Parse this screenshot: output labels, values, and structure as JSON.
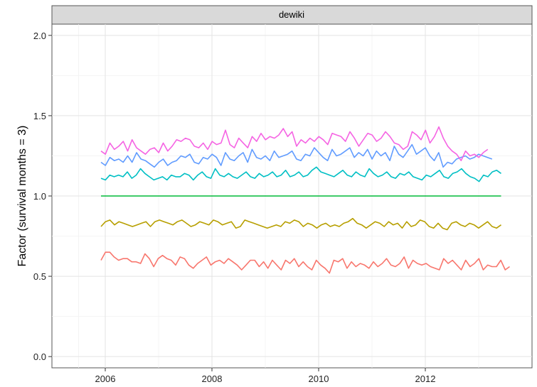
{
  "chart_data": {
    "type": "line",
    "panel": "dewiki",
    "title": "",
    "xlabel": "",
    "ylabel": "Factor (survival months = 3)",
    "xlim": [
      2005.0,
      2014.0
    ],
    "ylim": [
      -0.07,
      2.07
    ],
    "x_ticks": [
      2006,
      2008,
      2010,
      2012
    ],
    "y_ticks": [
      0.0,
      0.5,
      1.0,
      1.5,
      2.0
    ],
    "y_tick_labels": [
      "0.0",
      "0.5",
      "1.0",
      "1.5",
      "2.0"
    ],
    "grid": true,
    "legend": "none",
    "series": [
      {
        "color": "#F8766D",
        "x_start": 2005.92,
        "x_end": 2013.58,
        "values": [
          0.6,
          0.65,
          0.65,
          0.62,
          0.6,
          0.61,
          0.61,
          0.59,
          0.59,
          0.58,
          0.64,
          0.61,
          0.56,
          0.61,
          0.63,
          0.61,
          0.6,
          0.57,
          0.62,
          0.61,
          0.57,
          0.55,
          0.58,
          0.6,
          0.62,
          0.57,
          0.59,
          0.6,
          0.58,
          0.61,
          0.59,
          0.57,
          0.54,
          0.57,
          0.6,
          0.6,
          0.56,
          0.59,
          0.55,
          0.6,
          0.57,
          0.54,
          0.6,
          0.58,
          0.61,
          0.56,
          0.59,
          0.56,
          0.54,
          0.6,
          0.57,
          0.55,
          0.52,
          0.6,
          0.59,
          0.61,
          0.55,
          0.59,
          0.56,
          0.58,
          0.57,
          0.55,
          0.59,
          0.56,
          0.58,
          0.61,
          0.57,
          0.56,
          0.58,
          0.62,
          0.55,
          0.6,
          0.58,
          0.57,
          0.58,
          0.56,
          0.55,
          0.54,
          0.61,
          0.58,
          0.6,
          0.57,
          0.54,
          0.6,
          0.56,
          0.58,
          0.61,
          0.54,
          0.57,
          0.56,
          0.56,
          0.6,
          0.54,
          0.56
        ]
      },
      {
        "color": "#B79F00",
        "x_start": 2005.92,
        "x_end": 2013.42,
        "values": [
          0.81,
          0.84,
          0.85,
          0.82,
          0.84,
          0.83,
          0.82,
          0.81,
          0.82,
          0.83,
          0.84,
          0.81,
          0.84,
          0.85,
          0.84,
          0.83,
          0.82,
          0.84,
          0.85,
          0.83,
          0.81,
          0.82,
          0.84,
          0.83,
          0.82,
          0.85,
          0.84,
          0.82,
          0.83,
          0.84,
          0.8,
          0.81,
          0.85,
          0.84,
          0.83,
          0.82,
          0.81,
          0.8,
          0.81,
          0.82,
          0.81,
          0.84,
          0.83,
          0.85,
          0.84,
          0.81,
          0.83,
          0.82,
          0.8,
          0.82,
          0.83,
          0.81,
          0.82,
          0.81,
          0.83,
          0.84,
          0.86,
          0.83,
          0.82,
          0.8,
          0.82,
          0.84,
          0.83,
          0.81,
          0.84,
          0.82,
          0.83,
          0.8,
          0.84,
          0.81,
          0.82,
          0.85,
          0.84,
          0.81,
          0.8,
          0.83,
          0.8,
          0.79,
          0.83,
          0.84,
          0.82,
          0.81,
          0.83,
          0.82,
          0.8,
          0.82,
          0.84,
          0.81,
          0.8,
          0.82
        ]
      },
      {
        "color": "#00BA38",
        "x_start": 2005.92,
        "x_end": 2013.42,
        "values": [
          1.0,
          1.0
        ]
      },
      {
        "color": "#00BFC4",
        "x_start": 2005.92,
        "x_end": 2013.42,
        "values": [
          1.11,
          1.1,
          1.13,
          1.12,
          1.13,
          1.12,
          1.15,
          1.11,
          1.13,
          1.17,
          1.14,
          1.12,
          1.1,
          1.11,
          1.12,
          1.1,
          1.13,
          1.12,
          1.12,
          1.14,
          1.13,
          1.1,
          1.13,
          1.15,
          1.12,
          1.11,
          1.17,
          1.13,
          1.12,
          1.14,
          1.12,
          1.11,
          1.13,
          1.15,
          1.12,
          1.11,
          1.14,
          1.12,
          1.13,
          1.15,
          1.12,
          1.13,
          1.16,
          1.12,
          1.13,
          1.15,
          1.12,
          1.13,
          1.16,
          1.18,
          1.15,
          1.14,
          1.13,
          1.12,
          1.14,
          1.16,
          1.13,
          1.12,
          1.15,
          1.13,
          1.12,
          1.17,
          1.14,
          1.12,
          1.13,
          1.15,
          1.12,
          1.11,
          1.14,
          1.13,
          1.15,
          1.12,
          1.11,
          1.1,
          1.13,
          1.12,
          1.14,
          1.16,
          1.12,
          1.11,
          1.14,
          1.15,
          1.17,
          1.14,
          1.12,
          1.11,
          1.09,
          1.13,
          1.12,
          1.15,
          1.16,
          1.14
        ]
      },
      {
        "color": "#619CFF",
        "x_start": 2005.92,
        "x_end": 2013.25,
        "values": [
          1.21,
          1.19,
          1.24,
          1.22,
          1.23,
          1.21,
          1.25,
          1.21,
          1.27,
          1.23,
          1.22,
          1.2,
          1.18,
          1.21,
          1.23,
          1.19,
          1.21,
          1.22,
          1.25,
          1.24,
          1.26,
          1.21,
          1.2,
          1.24,
          1.23,
          1.26,
          1.24,
          1.19,
          1.27,
          1.23,
          1.22,
          1.25,
          1.27,
          1.21,
          1.29,
          1.24,
          1.23,
          1.25,
          1.22,
          1.28,
          1.24,
          1.25,
          1.26,
          1.28,
          1.23,
          1.22,
          1.26,
          1.25,
          1.3,
          1.27,
          1.24,
          1.22,
          1.29,
          1.25,
          1.26,
          1.28,
          1.3,
          1.24,
          1.27,
          1.25,
          1.29,
          1.23,
          1.28,
          1.25,
          1.27,
          1.22,
          1.31,
          1.26,
          1.24,
          1.28,
          1.32,
          1.26,
          1.28,
          1.3,
          1.25,
          1.22,
          1.27,
          1.18,
          1.21,
          1.2,
          1.23,
          1.24,
          1.25,
          1.23,
          1.24,
          1.26,
          1.25,
          1.24,
          1.23
        ]
      },
      {
        "color": "#F564E3",
        "x_start": 2005.92,
        "x_end": 2013.17,
        "values": [
          1.28,
          1.26,
          1.33,
          1.29,
          1.31,
          1.34,
          1.28,
          1.35,
          1.3,
          1.28,
          1.26,
          1.29,
          1.3,
          1.27,
          1.33,
          1.28,
          1.31,
          1.35,
          1.34,
          1.36,
          1.35,
          1.31,
          1.3,
          1.33,
          1.29,
          1.34,
          1.32,
          1.33,
          1.41,
          1.32,
          1.3,
          1.36,
          1.33,
          1.3,
          1.37,
          1.34,
          1.39,
          1.35,
          1.37,
          1.36,
          1.38,
          1.42,
          1.37,
          1.4,
          1.31,
          1.35,
          1.33,
          1.36,
          1.34,
          1.37,
          1.35,
          1.32,
          1.39,
          1.38,
          1.37,
          1.34,
          1.4,
          1.36,
          1.31,
          1.35,
          1.39,
          1.38,
          1.34,
          1.36,
          1.4,
          1.37,
          1.33,
          1.32,
          1.29,
          1.31,
          1.4,
          1.38,
          1.35,
          1.41,
          1.33,
          1.37,
          1.43,
          1.36,
          1.31,
          1.28,
          1.26,
          1.22,
          1.28,
          1.25,
          1.26,
          1.24,
          1.27,
          1.29
        ]
      }
    ]
  }
}
